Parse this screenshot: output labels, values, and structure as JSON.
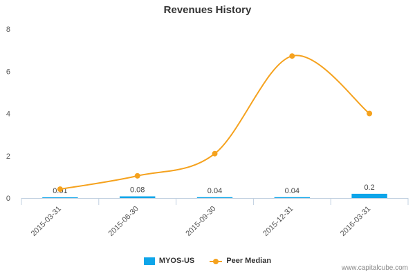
{
  "chart_data": {
    "type": "bar",
    "title": "Revenues History",
    "categories": [
      "2015-03-31",
      "2015-06-30",
      "2015-09-30",
      "2015-12-31",
      "2016-03-31"
    ],
    "series": [
      {
        "name": "MYOS-US",
        "type": "bar",
        "values": [
          0.01,
          0.08,
          0.04,
          0.04,
          0.2
        ],
        "labels": [
          "0.01",
          "0.08",
          "0.04",
          "0.04",
          "0.2"
        ],
        "color": "#0ea5e9"
      },
      {
        "name": "Peer Median",
        "type": "line",
        "values": [
          0.42,
          1.05,
          2.1,
          6.72,
          4.0
        ],
        "color": "#f5a21e"
      }
    ],
    "ylim": [
      0,
      8
    ],
    "yticks": [
      0,
      2,
      4,
      6,
      8
    ],
    "xlabel": "",
    "ylabel": "",
    "grid": false,
    "legend_position": "bottom-center"
  },
  "footer": {
    "credit": "www.capitalcube.com"
  }
}
